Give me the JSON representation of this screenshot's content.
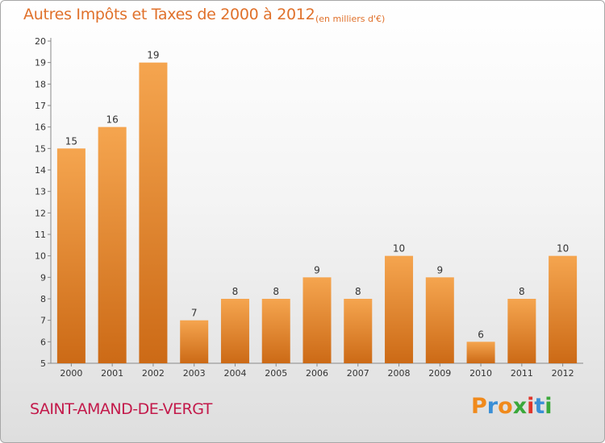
{
  "chart_data": {
    "type": "bar",
    "title": "Autres Impôts et Taxes de 2000 à 2012",
    "subtitle": "(en milliers d'€)",
    "categories": [
      "2000",
      "2001",
      "2002",
      "2003",
      "2004",
      "2005",
      "2006",
      "2007",
      "2008",
      "2009",
      "2010",
      "2011",
      "2012"
    ],
    "values": [
      15,
      16,
      19,
      7,
      8,
      8,
      9,
      8,
      10,
      9,
      6,
      8,
      10
    ],
    "ylim": [
      5,
      20
    ],
    "yticks": [
      5,
      6,
      7,
      8,
      9,
      10,
      11,
      12,
      13,
      14,
      15,
      16,
      17,
      18,
      19,
      20
    ],
    "grid": false,
    "bar_color_top": "#f5a54f",
    "bar_color_bottom": "#cc6a16"
  },
  "footer": {
    "commune": "SAINT-AMAND-DE-VERGT",
    "logo_text": "Proxiti",
    "logo_colors": [
      "#f08a1c",
      "#3a8fd6",
      "#f08a1c",
      "#3aa83a",
      "#e0352b",
      "#3a8fd6",
      "#3aa83a"
    ]
  }
}
